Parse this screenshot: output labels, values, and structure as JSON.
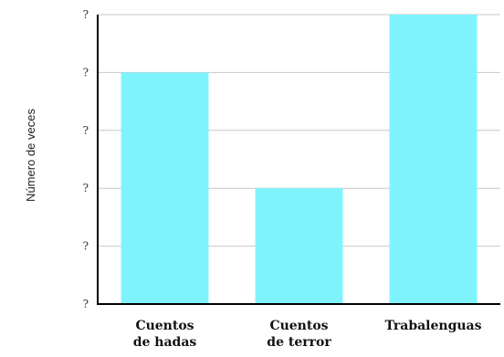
{
  "chart_data": {
    "type": "bar",
    "title": "",
    "xlabel": "",
    "ylabel": "Número de veces",
    "categories": [
      [
        "Cuentos",
        "de hadas"
      ],
      [
        "Cuentos",
        "de terror"
      ],
      [
        "Trabalenguas"
      ]
    ],
    "values": [
      4,
      2,
      5
    ],
    "ylim": [
      0,
      5
    ],
    "yticks": [
      0,
      1,
      2,
      3,
      4,
      5
    ],
    "ytick_labels": [
      "?",
      "?",
      "?",
      "?",
      "?",
      "?"
    ],
    "grid": true,
    "legend": "none",
    "colors": {
      "bar": "#80f4fd",
      "grid": "#c8c8c8",
      "axis": "#000000"
    }
  }
}
